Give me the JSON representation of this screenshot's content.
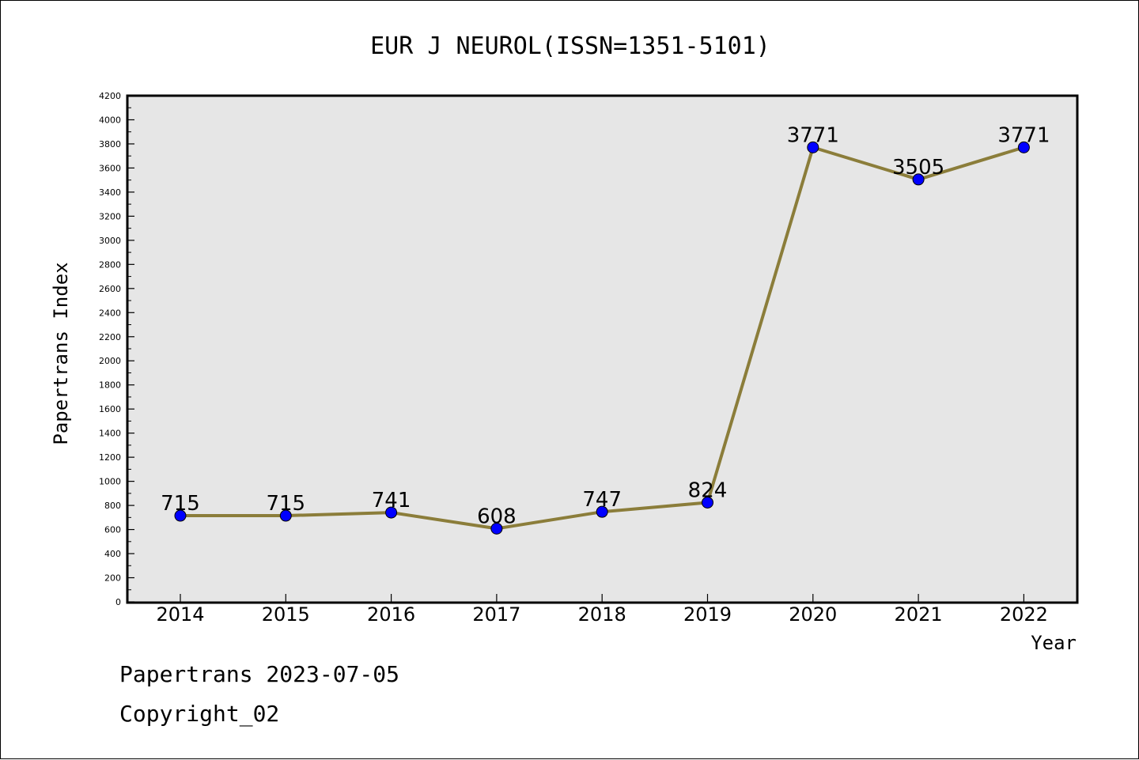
{
  "chart_data": {
    "type": "line",
    "title": "EUR J NEUROL(ISSN=1351-5101)",
    "xlabel": "Year",
    "ylabel": "Papertrans Index",
    "categories": [
      "2014",
      "2015",
      "2016",
      "2017",
      "2018",
      "2019",
      "2020",
      "2021",
      "2022"
    ],
    "values": [
      715,
      715,
      741,
      608,
      747,
      824,
      3771,
      3505,
      3771
    ],
    "ylim": [
      0,
      4200
    ],
    "y_major_step": 200,
    "y_ticks": [
      "0",
      "200",
      "400",
      "600",
      "800",
      "1000",
      "1200",
      "1400",
      "1600",
      "1800",
      "2000",
      "2200",
      "2400",
      "2600",
      "2800",
      "3000",
      "3200",
      "3400",
      "3600",
      "3800",
      "4000",
      "4200"
    ],
    "grid": false,
    "data_labels": true,
    "colors": {
      "line": "#8B7D3A",
      "marker": "#0000FF",
      "plot_background": "#E6E6E6"
    }
  },
  "footer": {
    "date_line": "Papertrans 2023-07-05",
    "copyright_line": "Copyright_02"
  }
}
